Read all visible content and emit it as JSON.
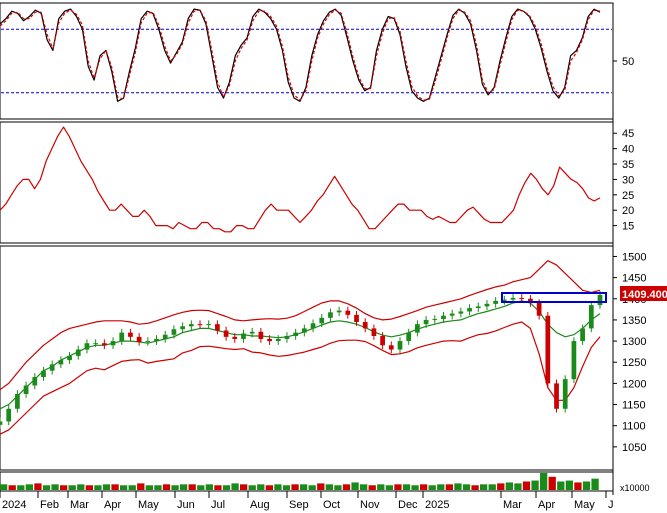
{
  "chart_data": [
    {
      "type": "line",
      "panel": "stochastic",
      "y_ticks": [
        50
      ],
      "guide_lines": [
        80,
        20
      ],
      "ylim": [
        0,
        100
      ],
      "series": [
        {
          "color": "#000000",
          "values": [
            85,
            90,
            97,
            95,
            88,
            92,
            98,
            95,
            70,
            60,
            90,
            97,
            99,
            92,
            80,
            45,
            32,
            55,
            60,
            40,
            12,
            15,
            40,
            62,
            90,
            97,
            95,
            80,
            60,
            48,
            58,
            68,
            90,
            99,
            98,
            85,
            55,
            25,
            15,
            30,
            55,
            65,
            72,
            92,
            99,
            96,
            90,
            80,
            60,
            30,
            15,
            12,
            25,
            55,
            75,
            88,
            96,
            99,
            93,
            72,
            50,
            32,
            22,
            25,
            60,
            80,
            92,
            90,
            75,
            45,
            22,
            15,
            12,
            15,
            35,
            55,
            75,
            93,
            99,
            95,
            85,
            60,
            28,
            18,
            25,
            50,
            72,
            92,
            99,
            97,
            92,
            80,
            62,
            40,
            22,
            15,
            25,
            55,
            60,
            72,
            92,
            99,
            96
          ]
        },
        {
          "color": "#e00000",
          "dashed": true,
          "values": [
            83,
            88,
            95,
            96,
            90,
            90,
            96,
            96,
            75,
            62,
            86,
            95,
            98,
            94,
            84,
            50,
            34,
            52,
            60,
            44,
            16,
            14,
            36,
            58,
            86,
            95,
            96,
            84,
            64,
            50,
            56,
            66,
            86,
            97,
            98,
            88,
            60,
            30,
            16,
            27,
            50,
            62,
            70,
            88,
            97,
            97,
            92,
            83,
            64,
            35,
            18,
            13,
            22,
            50,
            72,
            85,
            94,
            98,
            95,
            76,
            54,
            35,
            24,
            24,
            55,
            76,
            90,
            91,
            78,
            50,
            26,
            17,
            13,
            14,
            31,
            51,
            72,
            90,
            98,
            96,
            88,
            65,
            32,
            20,
            23,
            46,
            68,
            89,
            98,
            97,
            93,
            83,
            66,
            44,
            26,
            17,
            22,
            50,
            58,
            70,
            89,
            98,
            97
          ]
        }
      ]
    },
    {
      "type": "line",
      "panel": "adx",
      "y_ticks": [
        15,
        20,
        25,
        30,
        35,
        40,
        45
      ],
      "ylim": [
        10,
        48
      ],
      "series": [
        {
          "color": "#cc0000",
          "values": [
            20,
            22,
            25,
            28,
            30,
            30,
            27,
            30,
            36,
            40,
            44,
            47,
            44,
            40,
            36,
            33,
            30,
            26,
            23,
            20,
            20,
            22,
            20,
            18,
            18,
            20,
            18,
            15,
            15,
            15,
            14,
            16,
            15,
            14,
            14,
            16,
            16,
            14,
            14,
            13,
            13,
            15,
            15,
            14,
            14,
            17,
            20,
            22,
            20,
            20,
            20,
            18,
            16,
            18,
            20,
            23,
            25,
            28,
            31,
            28,
            25,
            22,
            20,
            17,
            14,
            14,
            16,
            18,
            20,
            22,
            22,
            20,
            20,
            20,
            18,
            17,
            18,
            17,
            16,
            16,
            18,
            20,
            21,
            19,
            17,
            16,
            16,
            16,
            18,
            20,
            25,
            29,
            32,
            30,
            27,
            25,
            28,
            34,
            32,
            30,
            29,
            27,
            24,
            23,
            24
          ]
        }
      ]
    },
    {
      "type": "line",
      "panel": "price",
      "y_ticks": [
        1050,
        1100,
        1150,
        1200,
        1250,
        1300,
        1350,
        1400,
        1450,
        1500
      ],
      "ylim": [
        1000,
        1520
      ],
      "last_price": "1409.400",
      "series": [
        {
          "color": "#1a8a1a",
          "values": [
            1140,
            1150,
            1170,
            1190,
            1210,
            1230,
            1240,
            1255,
            1265,
            1275,
            1285,
            1290,
            1290,
            1295,
            1300,
            1300,
            1298,
            1295,
            1300,
            1305,
            1310,
            1320,
            1325,
            1330,
            1330,
            1325,
            1320,
            1315,
            1315,
            1312,
            1312,
            1310,
            1308,
            1310,
            1315,
            1322,
            1330,
            1338,
            1345,
            1348,
            1345,
            1340,
            1332,
            1322,
            1314,
            1310,
            1314,
            1320,
            1328,
            1335,
            1340,
            1345,
            1348,
            1350,
            1358,
            1365,
            1370,
            1376,
            1382,
            1390,
            1395,
            1390,
            1370,
            1340,
            1320,
            1310,
            1315,
            1330,
            1350,
            1365
          ]
        },
        {
          "color": "#cc0000",
          "values": [
            1185,
            1200,
            1225,
            1250,
            1270,
            1290,
            1305,
            1320,
            1330,
            1335,
            1340,
            1345,
            1348,
            1348,
            1348,
            1345,
            1340,
            1342,
            1348,
            1355,
            1362,
            1368,
            1372,
            1373,
            1372,
            1365,
            1358,
            1350,
            1348,
            1350,
            1352,
            1353,
            1352,
            1354,
            1360,
            1370,
            1380,
            1390,
            1395,
            1395,
            1388,
            1378,
            1365,
            1355,
            1350,
            1352,
            1358,
            1365,
            1372,
            1380,
            1385,
            1390,
            1395,
            1400,
            1408,
            1415,
            1422,
            1428,
            1432,
            1440,
            1445,
            1450,
            1470,
            1490,
            1480,
            1460,
            1440,
            1420,
            1415,
            1420
          ]
        },
        {
          "color": "#cc0000",
          "values": [
            1080,
            1090,
            1110,
            1130,
            1150,
            1170,
            1180,
            1190,
            1200,
            1215,
            1230,
            1236,
            1232,
            1242,
            1252,
            1255,
            1256,
            1248,
            1252,
            1255,
            1258,
            1272,
            1278,
            1287,
            1288,
            1285,
            1282,
            1280,
            1282,
            1274,
            1272,
            1267,
            1264,
            1266,
            1270,
            1274,
            1280,
            1286,
            1295,
            1301,
            1302,
            1302,
            1299,
            1289,
            1278,
            1268,
            1270,
            1275,
            1284,
            1290,
            1295,
            1300,
            1301,
            1300,
            1308,
            1315,
            1318,
            1324,
            1332,
            1340,
            1345,
            1330,
            1270,
            1190,
            1160,
            1160,
            1190,
            1240,
            1285,
            1310
          ]
        },
        {
          "color": "#1a8a1a",
          "values": [
            1110,
            1140,
            1175,
            1195,
            1215,
            1230,
            1245,
            1255,
            1265,
            1280,
            1295,
            1295,
            1290,
            1300,
            1320,
            1310,
            1298,
            1300,
            1305,
            1315,
            1328,
            1335,
            1340,
            1338,
            1340,
            1325,
            1310,
            1305,
            1318,
            1322,
            1305,
            1300,
            1305,
            1312,
            1320,
            1330,
            1342,
            1355,
            1368,
            1372,
            1362,
            1345,
            1330,
            1312,
            1290,
            1280,
            1300,
            1320,
            1340,
            1350,
            1352,
            1360,
            1365,
            1370,
            1378,
            1382,
            1388,
            1395,
            1398,
            1402,
            1400,
            1390,
            1360,
            1200,
            1140,
            1210,
            1300,
            1330,
            1385,
            1409
          ]
        }
      ]
    },
    {
      "type": "bar",
      "panel": "volume",
      "unit": "x10000",
      "values": [
        6,
        5,
        5,
        6,
        7,
        5,
        6,
        5,
        5,
        6,
        5,
        5,
        6,
        6,
        5,
        5,
        7,
        5,
        5,
        6,
        5,
        6,
        6,
        5,
        6,
        5,
        5,
        7,
        6,
        5,
        6,
        5,
        6,
        5,
        6,
        6,
        5,
        7,
        6,
        5,
        6,
        8,
        6,
        5,
        6,
        5,
        6,
        6,
        5,
        6,
        5,
        6,
        6,
        7,
        6,
        5,
        6,
        6,
        7,
        8,
        7,
        9,
        10,
        18,
        14,
        9,
        10,
        8,
        9,
        12
      ]
    }
  ],
  "x_axis": {
    "month_labels": [
      "2024",
      "Feb",
      "Mar",
      "Apr",
      "May",
      "Jun",
      "Jul",
      "Aug",
      "Sep",
      "Oct",
      "Nov",
      "Dec",
      "2025",
      "Mar",
      "Apr",
      "May",
      "J"
    ]
  },
  "colors": {
    "stoch_line": "#000000",
    "stoch_signal": "#e00000",
    "guide_line": "#0000cc",
    "adx_line": "#cc0000",
    "bollinger_band": "#cc0000",
    "moving_average": "#1a8a1a",
    "candle_up": "#1a8a1a",
    "candle_down": "#cc0000",
    "highlight_box": "#0000cc",
    "price_tag_bg": "#cc0000",
    "volume_bar": "#1a8a1a"
  }
}
